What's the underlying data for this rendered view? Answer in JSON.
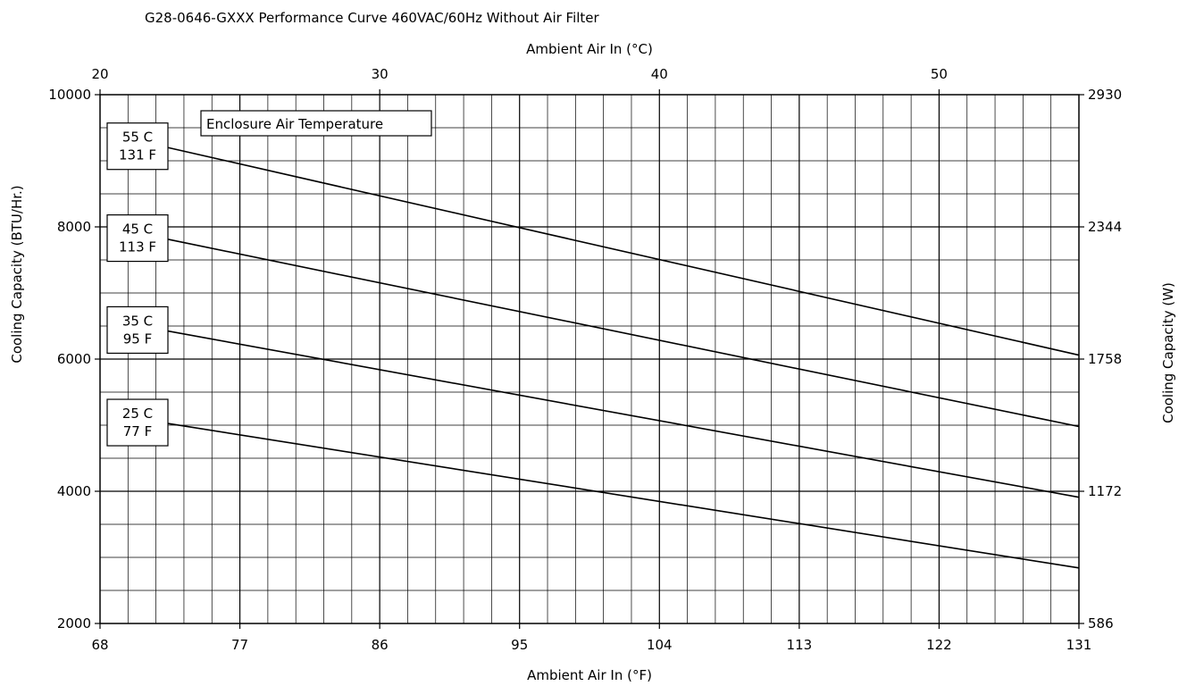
{
  "chart_data": {
    "type": "line",
    "title": "G28-0646-GXXX Performance Curve 460VAC/60Hz Without Air Filter",
    "xlabel": "Ambient Air In (°F)",
    "xlabel_top": "Ambient Air In (°C)",
    "ylabel": "Cooling Capacity (BTU/Hr.)",
    "ylabel_right": "Cooling Capacity (W)",
    "xlim": [
      68,
      131
    ],
    "ylim": [
      2000,
      10000
    ],
    "x_ticks": [
      "68",
      "77",
      "86",
      "95",
      "104",
      "113",
      "122",
      "131"
    ],
    "x_ticks_top": [
      "20",
      "30",
      "40",
      "50"
    ],
    "y_ticks": [
      "2000",
      "4000",
      "6000",
      "8000",
      "10000"
    ],
    "y_ticks_right": [
      "586",
      "1172",
      "1758",
      "2344",
      "2930"
    ],
    "grid": true,
    "legend_title": "Enclosure Air Temperature",
    "series": [
      {
        "name": "55 C\n131 F",
        "x": [
          72,
          131
        ],
        "y": [
          9220,
          6060
        ]
      },
      {
        "name": "45 C\n113 F",
        "x": [
          72,
          131
        ],
        "y": [
          7830,
          4980
        ]
      },
      {
        "name": "35 C\n95 F",
        "x": [
          72,
          131
        ],
        "y": [
          6440,
          3910
        ]
      },
      {
        "name": "25 C\n77 F",
        "x": [
          72,
          131
        ],
        "y": [
          5040,
          2840
        ]
      }
    ]
  }
}
